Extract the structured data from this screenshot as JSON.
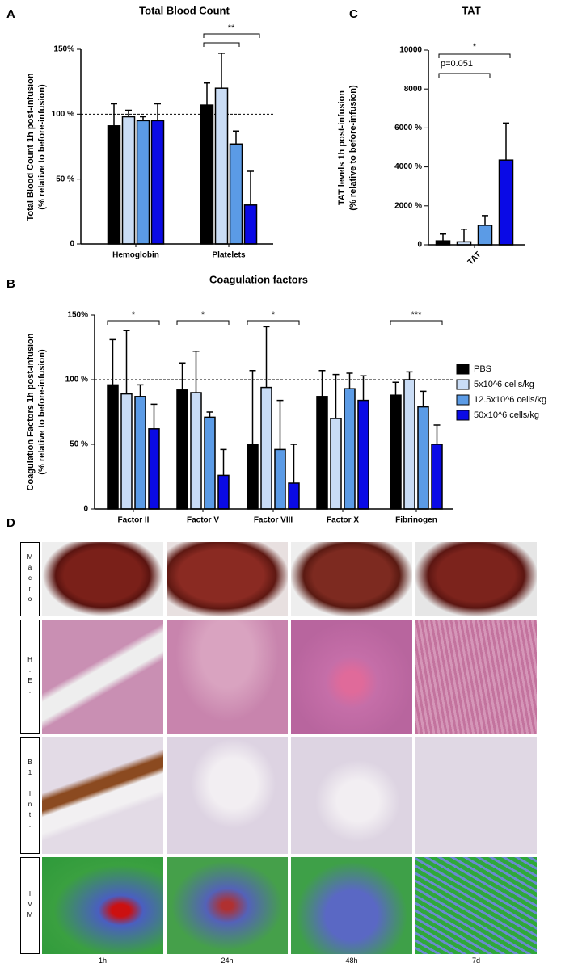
{
  "chart_data": [
    {
      "type": "bar",
      "panel": "A",
      "title": "Total Blood Count",
      "ylabel": [
        "Total Blood Count 1h post-infusion",
        "(% relative to before-infusion)"
      ],
      "categories": [
        "Hemoglobin",
        "Platelets"
      ],
      "series": [
        {
          "name": "PBS",
          "color": "#000000",
          "values": [
            91,
            107
          ],
          "errors": [
            17,
            17
          ]
        },
        {
          "name": "5x10^6 cells/kg",
          "color": "#c9dcf5",
          "values": [
            98,
            120
          ],
          "errors": [
            5,
            27
          ]
        },
        {
          "name": "12.5x10^6 cells/kg",
          "color": "#5b9be6",
          "values": [
            95,
            77
          ],
          "errors": [
            3,
            10
          ]
        },
        {
          "name": "50x10^6 cells/kg",
          "color": "#0a0ae6",
          "values": [
            95,
            30
          ],
          "errors": [
            13,
            26
          ]
        }
      ],
      "ylim": [
        0,
        150
      ],
      "yticks": [
        0,
        {
          "value": 50,
          "label": "50 %"
        },
        {
          "value": 100,
          "label": "100 %"
        },
        {
          "value": 150,
          "label": "150%"
        }
      ],
      "hline": 100,
      "annotations": [
        "**"
      ]
    },
    {
      "type": "bar",
      "panel": "B",
      "title": "Coagulation factors",
      "ylabel": [
        "Coagulation Factors 1h post-infusion",
        "(% relative to before-infusion)"
      ],
      "categories": [
        "Factor II",
        "Factor V",
        "Factor VIII",
        "Factor X",
        "Fibrinogen"
      ],
      "series": [
        {
          "name": "PBS",
          "color": "#000000",
          "values": [
            96,
            92,
            50,
            87,
            88
          ],
          "errors": [
            35,
            21,
            57,
            20,
            10
          ]
        },
        {
          "name": "5x10^6 cells/kg",
          "color": "#c9dcf5",
          "values": [
            89,
            90,
            94,
            70,
            100
          ],
          "errors": [
            49,
            32,
            47,
            34,
            6
          ]
        },
        {
          "name": "12.5x10^6 cells/kg",
          "color": "#5b9be6",
          "values": [
            87,
            71,
            46,
            93,
            79
          ],
          "errors": [
            9,
            4,
            38,
            12,
            12
          ]
        },
        {
          "name": "50x10^6 cells/kg",
          "color": "#0a0ae6",
          "values": [
            62,
            26,
            20,
            84,
            50
          ],
          "errors": [
            19,
            20,
            30,
            19,
            15
          ]
        }
      ],
      "ylim": [
        0,
        150
      ],
      "yticks": [
        0,
        {
          "value": 50,
          "label": "50 %"
        },
        {
          "value": 100,
          "label": "100 %"
        },
        {
          "value": 150,
          "label": "150%"
        }
      ],
      "hline": 100,
      "legend": "right",
      "annotations": [
        "*",
        "*",
        "*",
        "***"
      ]
    },
    {
      "type": "bar",
      "panel": "C",
      "title": "TAT",
      "ylabel": [
        "TAT levels 1h post-infusion",
        "(% relative to before-infusion)"
      ],
      "categories": [
        "TAT"
      ],
      "series": [
        {
          "name": "PBS",
          "color": "#000000",
          "values": [
            200
          ],
          "errors": [
            350
          ]
        },
        {
          "name": "5x10^6 cells/kg",
          "color": "#c9dcf5",
          "values": [
            150
          ],
          "errors": [
            650
          ]
        },
        {
          "name": "12.5x10^6 cells/kg",
          "color": "#5b9be6",
          "values": [
            1000
          ],
          "errors": [
            500
          ]
        },
        {
          "name": "50x10^6 cells/kg",
          "color": "#0a0ae6",
          "values": [
            4350
          ],
          "errors": [
            1900
          ]
        }
      ],
      "ylim": [
        0,
        10000
      ],
      "yticks": [
        0,
        {
          "value": 2000,
          "label": "2000 %"
        },
        {
          "value": 4000,
          "label": "4000 %"
        },
        {
          "value": 6000,
          "label": "6000 %"
        },
        {
          "value": 8000,
          "label": "8000"
        },
        10000
      ],
      "annotations": [
        "*",
        "p=0.051"
      ]
    }
  ],
  "panel_d": {
    "label": "D",
    "rows": [
      "Macro",
      "H.E.",
      "B1 Int.",
      "IVM"
    ],
    "columns": [
      "1h",
      "24h",
      "48h",
      "7d"
    ]
  }
}
